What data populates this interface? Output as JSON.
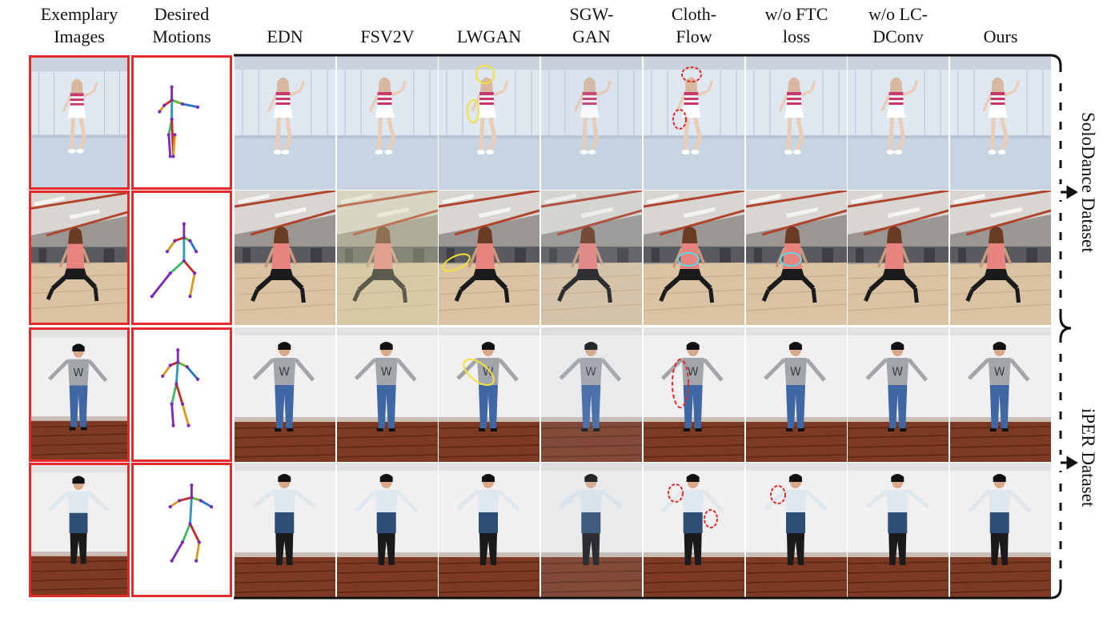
{
  "figure": {
    "column_headers": [
      {
        "line1": "Exemplary",
        "line2": "Images"
      },
      {
        "line1": "Desired",
        "line2": "Motions"
      },
      {
        "line1": "EDN",
        "line2": ""
      },
      {
        "line1": "FSV2V",
        "line2": ""
      },
      {
        "line1": "LWGAN",
        "line2": ""
      },
      {
        "line1": "SGW-",
        "line2": "GAN"
      },
      {
        "line1": "Cloth-",
        "line2": "Flow"
      },
      {
        "line1": "w/o FTC",
        "line2": "loss"
      },
      {
        "line1": "w/o LC-",
        "line2": "DConv"
      },
      {
        "line1": "Ours",
        "line2": ""
      }
    ],
    "dataset_labels": [
      {
        "label": "SoloDance Dataset"
      },
      {
        "label": "iPER Dataset"
      }
    ],
    "rows": [
      {
        "scene": "white-studio",
        "figure": "girl-striped"
      },
      {
        "scene": "gym",
        "figure": "girl-pink"
      },
      {
        "scene": "white-wall-floor",
        "figure": "boy-w"
      },
      {
        "scene": "white-wall-floor",
        "figure": "boy-jacket"
      }
    ],
    "colors": {
      "exemplar_border": "#e32b2b",
      "failure_marker": "#e32b2b",
      "lwgan_marker": "#f2e23a",
      "frame": "#111111"
    }
  }
}
